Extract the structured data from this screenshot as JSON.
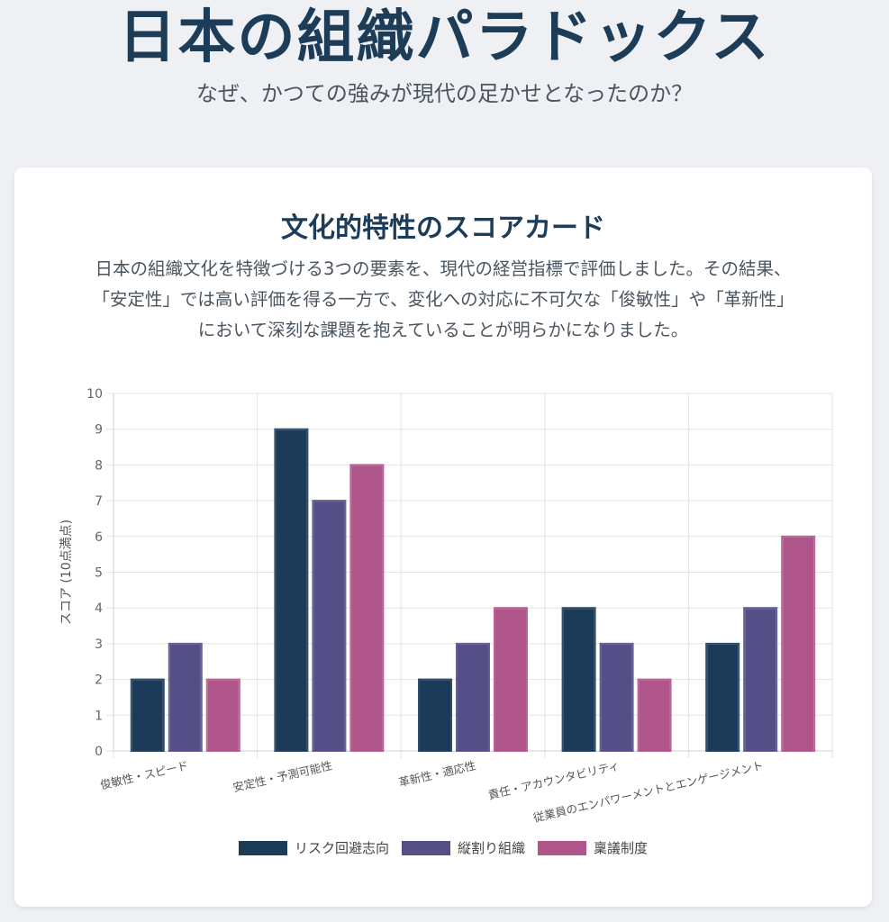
{
  "header": {
    "title": "日本の組織パラドックス",
    "subtitle": "なぜ、かつての強みが現代の足かせとなったのか？"
  },
  "card": {
    "title": "文化的特性のスコアカード",
    "description_lines": [
      "日本の組織文化を特徴づける3つの要素を、現代の経営指標で評価しました。その結果、",
      "「安定性」では高い評価を得る一方で、変化への対応に不可欠な「俊敏性」や「革新性」",
      "において深刻な課題を抱えていることが明らかになりました。"
    ]
  },
  "chart_data": {
    "type": "bar",
    "categories": [
      "俊敏性・スピード",
      "安定性・予測可能性",
      "革新性・適応性",
      "責任・アカウンタビリティ",
      "従業員のエンパワーメントとエンゲージメント"
    ],
    "series": [
      {
        "name": "リスク回避志向",
        "values": [
          2,
          9,
          2,
          4,
          3
        ],
        "color": "#1b3b59"
      },
      {
        "name": "縦割り組織",
        "values": [
          3,
          7,
          3,
          3,
          4
        ],
        "color": "#544f87"
      },
      {
        "name": "稟議制度",
        "values": [
          2,
          8,
          4,
          2,
          6
        ],
        "color": "#b0558a"
      }
    ],
    "ylabel": "スコア (10点満点)",
    "xlabel": "",
    "ylim": [
      0,
      10
    ],
    "yticks": [
      0,
      1,
      2,
      3,
      4,
      5,
      6,
      7,
      8,
      9,
      10
    ],
    "grid": true,
    "legend_position": "bottom"
  }
}
